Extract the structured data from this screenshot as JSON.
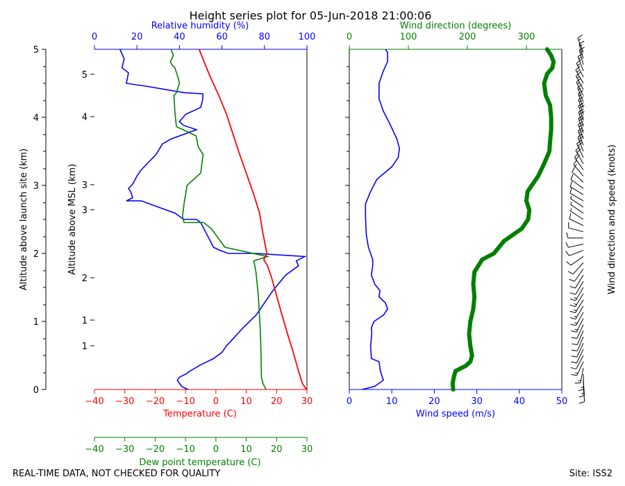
{
  "title": "Height series plot for 05-Jun-2018 21:00:06",
  "footer_left": "REAL-TIME DATA, NOT CHECKED FOR QUALITY",
  "footer_right": "Site: ISS2",
  "colors": {
    "temperature": "#ff0000",
    "dewpoint": "#008000",
    "rh": "#0000ff",
    "wind_speed": "#0000ff",
    "wind_dir": "#008000",
    "barb": "#000000"
  },
  "chart_data": [
    {
      "type": "line",
      "name": "thermodynamic-profile",
      "y_label_outer": "Altitude above launch site (km)",
      "y_outer_ticks": [
        "0",
        "1",
        "2",
        "3",
        "4",
        "5"
      ],
      "y_label_inner": "Altitude above MSL (km)",
      "y_inner_ticks": [
        "1",
        "1",
        "2",
        "3",
        "3",
        "4",
        "5"
      ],
      "ylim_agl": [
        0,
        5
      ],
      "temperature_axis": {
        "label": "Temperature (C)",
        "xlim": [
          -40,
          30
        ],
        "ticks": [
          "−40",
          "−30",
          "−20",
          "−10",
          "0",
          "10",
          "20",
          "30"
        ]
      },
      "dewpoint_axis": {
        "label": "Dew point temperature (C)",
        "xlim": [
          -40,
          30
        ],
        "ticks": [
          "−40",
          "−30",
          "−20",
          "−10",
          "0",
          "10",
          "20",
          "30"
        ]
      },
      "rh_axis": {
        "label": "Relative humidity (%)",
        "xlim": [
          0,
          100
        ],
        "ticks": [
          "0",
          "20",
          "40",
          "60",
          "80",
          "100"
        ]
      },
      "series": [
        {
          "name": "Temperature",
          "units": "C",
          "points": [
            [
              29.8,
              0.0
            ],
            [
              28.5,
              0.1
            ],
            [
              27.2,
              0.3
            ],
            [
              25.5,
              0.6
            ],
            [
              23.6,
              0.9
            ],
            [
              21.8,
              1.2
            ],
            [
              20.1,
              1.5
            ],
            [
              18.4,
              1.8
            ],
            [
              17.0,
              2.0
            ],
            [
              15.8,
              2.1
            ],
            [
              16.8,
              2.2
            ],
            [
              15.4,
              2.55
            ],
            [
              14.4,
              2.85
            ],
            [
              12.5,
              3.15
            ],
            [
              10.0,
              3.5
            ],
            [
              7.5,
              3.85
            ],
            [
              5.5,
              4.15
            ],
            [
              3.5,
              4.45
            ],
            [
              1.0,
              4.75
            ],
            [
              -1.8,
              5.05
            ],
            [
              -3.5,
              5.25
            ],
            [
              -5.5,
              5.5
            ]
          ]
        },
        {
          "name": "Dew point",
          "units": "C",
          "points": [
            [
              16.5,
              0.0
            ],
            [
              15.5,
              0.1
            ],
            [
              15.0,
              0.2
            ],
            [
              14.9,
              0.5
            ],
            [
              14.7,
              0.9
            ],
            [
              14.0,
              1.5
            ],
            [
              13.2,
              1.9
            ],
            [
              12.5,
              2.08
            ],
            [
              17.0,
              2.15
            ],
            [
              3.0,
              2.3
            ],
            [
              -1.5,
              2.6
            ],
            [
              -4.0,
              2.7
            ],
            [
              -10.5,
              2.7
            ],
            [
              -11.0,
              2.8
            ],
            [
              -10.5,
              3.0
            ],
            [
              -9.5,
              3.3
            ],
            [
              -5.0,
              3.5
            ],
            [
              -4.2,
              3.8
            ],
            [
              -5.8,
              3.92
            ],
            [
              -6.5,
              4.1
            ],
            [
              -13.0,
              4.25
            ],
            [
              -13.5,
              4.5
            ],
            [
              -13.8,
              4.75
            ],
            [
              -13.0,
              4.8
            ],
            [
              -12.0,
              4.95
            ],
            [
              -12.5,
              5.05
            ],
            [
              -13.5,
              5.2
            ],
            [
              -14.5,
              5.25
            ],
            [
              -15.0,
              5.3
            ],
            [
              -14.0,
              5.4
            ],
            [
              -14.8,
              5.5
            ]
          ]
        },
        {
          "name": "Relative humidity",
          "units": "%",
          "points": [
            [
              44,
              0.0
            ],
            [
              41,
              0.05
            ],
            [
              39,
              0.15
            ],
            [
              40,
              0.2
            ],
            [
              43,
              0.25
            ],
            [
              45,
              0.3
            ],
            [
              50,
              0.4
            ],
            [
              56,
              0.5
            ],
            [
              60,
              0.6
            ],
            [
              62,
              0.7
            ],
            [
              66,
              0.85
            ],
            [
              70,
              1.0
            ],
            [
              73,
              1.1
            ],
            [
              76,
              1.2
            ],
            [
              80,
              1.4
            ],
            [
              84,
              1.6
            ],
            [
              90,
              1.85
            ],
            [
              96,
              2.0
            ],
            [
              95,
              2.08
            ],
            [
              99,
              2.15
            ],
            [
              76,
              2.2
            ],
            [
              63,
              2.2
            ],
            [
              59,
              2.25
            ],
            [
              56,
              2.3
            ],
            [
              53,
              2.5
            ],
            [
              50,
              2.7
            ],
            [
              48,
              2.75
            ],
            [
              42,
              2.75
            ],
            [
              38,
              2.85
            ],
            [
              22,
              3.05
            ],
            [
              15,
              3.05
            ],
            [
              18,
              3.1
            ],
            [
              17,
              3.2
            ],
            [
              16,
              3.25
            ],
            [
              18,
              3.32
            ],
            [
              20,
              3.45
            ],
            [
              22,
              3.55
            ],
            [
              29,
              3.8
            ],
            [
              32,
              3.97
            ],
            [
              36,
              4.05
            ],
            [
              48,
              4.2
            ],
            [
              42,
              4.27
            ],
            [
              40,
              4.33
            ],
            [
              43,
              4.45
            ],
            [
              50,
              4.56
            ],
            [
              51,
              4.7
            ],
            [
              51,
              4.78
            ],
            [
              42,
              4.8
            ],
            [
              25,
              4.9
            ],
            [
              15,
              4.95
            ],
            [
              16,
              5.12
            ],
            [
              13,
              5.2
            ],
            [
              14,
              5.35
            ],
            [
              12,
              5.5
            ]
          ]
        }
      ]
    },
    {
      "type": "line",
      "name": "wind-profile",
      "speed_axis": {
        "label": "Wind speed (m/s)",
        "xlim": [
          0,
          50
        ],
        "ticks": [
          "0",
          "10",
          "20",
          "30",
          "40",
          "50"
        ]
      },
      "direction_axis": {
        "label": "Wind direction (degrees)",
        "xlim": [
          0,
          360
        ],
        "ticks": [
          "0",
          "100",
          "200",
          "300"
        ]
      },
      "barb_label": "Wind direction and speed (knots)",
      "ylim_agl": [
        0,
        5
      ],
      "series": [
        {
          "name": "Wind speed",
          "units": "m/s",
          "points": [
            [
              3,
              0.0
            ],
            [
              6,
              0.05
            ],
            [
              8,
              0.15
            ],
            [
              7.3,
              0.3
            ],
            [
              7.0,
              0.45
            ],
            [
              5.2,
              0.5
            ],
            [
              5.0,
              0.7
            ],
            [
              5.3,
              0.9
            ],
            [
              5.2,
              1.0
            ],
            [
              5.8,
              1.1
            ],
            [
              8.0,
              1.2
            ],
            [
              9.0,
              1.3
            ],
            [
              8.5,
              1.4
            ],
            [
              7.0,
              1.5
            ],
            [
              7.2,
              1.6
            ],
            [
              6.0,
              1.7
            ],
            [
              5.2,
              1.85
            ],
            [
              5.5,
              2.0
            ],
            [
              5.5,
              2.1
            ],
            [
              4.5,
              2.3
            ],
            [
              4.0,
              2.5
            ],
            [
              3.8,
              2.8
            ],
            [
              3.8,
              3.0
            ],
            [
              5.0,
              3.2
            ],
            [
              6.5,
              3.4
            ],
            [
              10.0,
              3.6
            ],
            [
              11.5,
              3.75
            ],
            [
              11.8,
              3.9
            ],
            [
              11.2,
              4.05
            ],
            [
              9.5,
              4.3
            ],
            [
              8.0,
              4.5
            ],
            [
              7.0,
              4.7
            ],
            [
              7.0,
              4.95
            ],
            [
              8.0,
              5.15
            ],
            [
              9.0,
              5.3
            ],
            [
              9.0,
              5.45
            ],
            [
              8.5,
              5.5
            ]
          ]
        },
        {
          "name": "Wind direction",
          "units": "degrees",
          "points": [
            [
              176,
              0.0
            ],
            [
              175,
              0.1
            ],
            [
              177,
              0.2
            ],
            [
              180,
              0.3
            ],
            [
              197,
              0.38
            ],
            [
              205,
              0.45
            ],
            [
              208,
              0.55
            ],
            [
              205,
              0.7
            ],
            [
              203,
              0.9
            ],
            [
              205,
              1.1
            ],
            [
              210,
              1.3
            ],
            [
              212,
              1.5
            ],
            [
              210,
              1.7
            ],
            [
              212,
              1.9
            ],
            [
              225,
              2.1
            ],
            [
              245,
              2.2
            ],
            [
              262,
              2.4
            ],
            [
              292,
              2.6
            ],
            [
              303,
              2.75
            ],
            [
              305,
              2.9
            ],
            [
              300,
              3.05
            ],
            [
              302,
              3.2
            ],
            [
              320,
              3.45
            ],
            [
              330,
              3.65
            ],
            [
              339,
              3.85
            ],
            [
              340,
              4.0
            ],
            [
              342,
              4.2
            ],
            [
              342,
              4.4
            ],
            [
              340,
              4.6
            ],
            [
              333,
              4.75
            ],
            [
              330,
              4.95
            ],
            [
              335,
              5.1
            ],
            [
              344,
              5.2
            ],
            [
              346,
              5.3
            ],
            [
              342,
              5.4
            ],
            [
              335,
              5.5
            ]
          ]
        }
      ]
    }
  ]
}
